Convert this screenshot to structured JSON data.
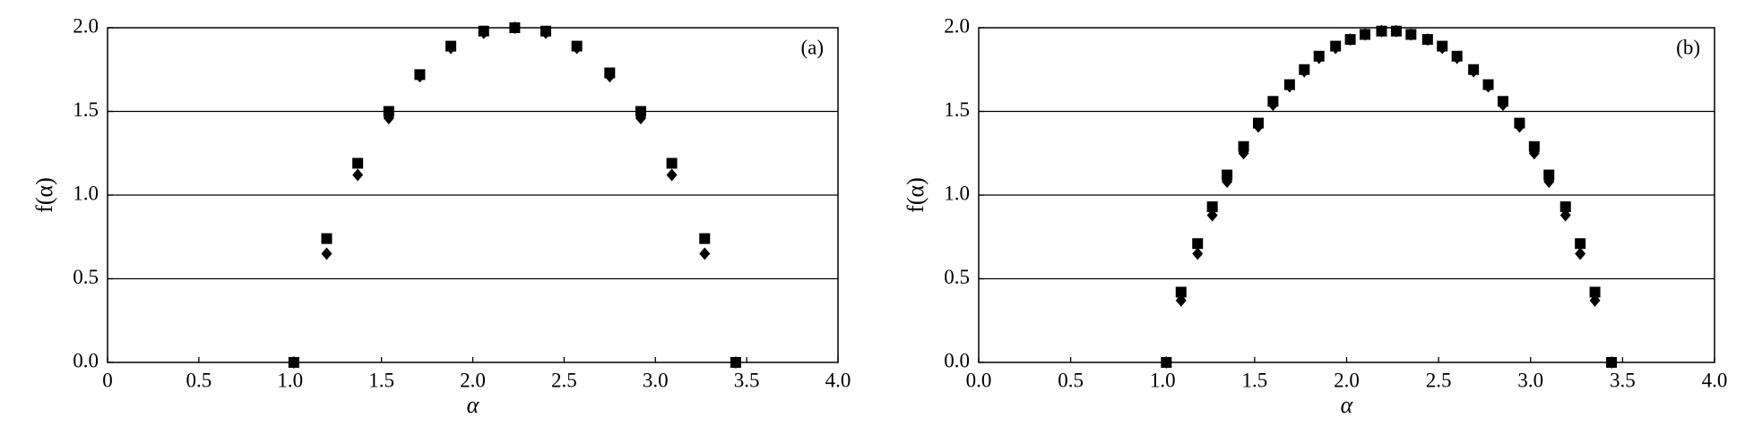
{
  "chart_data": [
    {
      "type": "scatter",
      "annotation": "(a)",
      "xlabel": "α",
      "ylabel": "f(α)",
      "xlim": [
        0,
        4
      ],
      "ylim": [
        0,
        2
      ],
      "xticks": [
        0,
        0.5,
        {
          "value": 1,
          "label": "1.0"
        },
        1.5,
        {
          "value": 2,
          "label": "2.0"
        },
        2.5,
        {
          "value": 3,
          "label": "3.0"
        },
        3.5,
        {
          "value": 4,
          "label": "4.0"
        }
      ],
      "yticks": [
        {
          "value": 0,
          "label": "0.0"
        },
        0.5,
        {
          "value": 1,
          "label": "1.0"
        },
        1.5,
        {
          "value": 2,
          "label": "2.0"
        }
      ],
      "grid": true,
      "x": [
        1.02,
        1.2,
        1.37,
        1.54,
        1.71,
        1.88,
        2.06,
        2.23,
        2.4,
        2.57,
        2.75,
        2.92,
        3.09,
        3.27,
        3.44
      ],
      "series": [
        {
          "marker": "square",
          "color": "#000000",
          "values": [
            0,
            0.74,
            1.19,
            1.5,
            1.72,
            1.89,
            1.98,
            2.0,
            1.98,
            1.89,
            1.73,
            1.5,
            1.19,
            0.74,
            0
          ]
        },
        {
          "marker": "diamond",
          "color": "#000000",
          "values": [
            0,
            0.65,
            1.12,
            1.46,
            1.71,
            1.88,
            1.97,
            2.0,
            1.97,
            1.88,
            1.71,
            1.46,
            1.12,
            0.65,
            0
          ]
        }
      ]
    },
    {
      "type": "scatter",
      "annotation": "(b)",
      "xlabel": "α",
      "ylabel": "f(α)",
      "xlim": [
        0,
        4
      ],
      "ylim": [
        0,
        2
      ],
      "xticks": [
        {
          "value": 0,
          "label": "0.0"
        },
        0.5,
        {
          "value": 1,
          "label": "1.0"
        },
        1.5,
        {
          "value": 2,
          "label": "2.0"
        },
        2.5,
        {
          "value": 3,
          "label": "3.0"
        },
        3.5,
        {
          "value": 4,
          "label": "4.0"
        }
      ],
      "yticks": [
        {
          "value": 0,
          "label": "0.0"
        },
        0.5,
        {
          "value": 1,
          "label": "1.0"
        },
        1.5,
        {
          "value": 2,
          "label": "2.0"
        }
      ],
      "grid": true,
      "x": [
        1.02,
        1.1,
        1.19,
        1.27,
        1.35,
        1.44,
        1.52,
        1.6,
        1.69,
        1.77,
        1.85,
        1.94,
        2.02,
        2.1,
        2.19,
        2.27,
        2.35,
        2.44,
        2.52,
        2.6,
        2.69,
        2.77,
        2.85,
        2.94,
        3.02,
        3.1,
        3.19,
        3.27,
        3.35,
        3.44
      ],
      "series": [
        {
          "marker": "square",
          "color": "#000000",
          "values": [
            0,
            0.42,
            0.71,
            0.93,
            1.12,
            1.29,
            1.43,
            1.56,
            1.66,
            1.75,
            1.83,
            1.89,
            1.93,
            1.96,
            1.98,
            1.98,
            1.96,
            1.93,
            1.89,
            1.83,
            1.75,
            1.66,
            1.56,
            1.43,
            1.29,
            1.12,
            0.93,
            0.71,
            0.42,
            0
          ]
        },
        {
          "marker": "diamond",
          "color": "#000000",
          "values": [
            0,
            0.37,
            0.65,
            0.88,
            1.08,
            1.25,
            1.41,
            1.54,
            1.65,
            1.74,
            1.82,
            1.88,
            1.93,
            1.96,
            1.98,
            1.98,
            1.96,
            1.93,
            1.88,
            1.82,
            1.74,
            1.65,
            1.54,
            1.41,
            1.25,
            1.08,
            0.88,
            0.65,
            0.37,
            0
          ]
        }
      ]
    }
  ]
}
